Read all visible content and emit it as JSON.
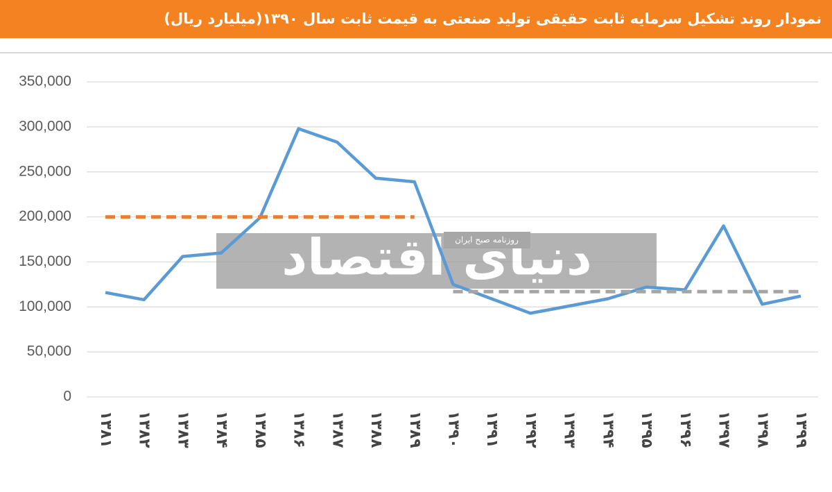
{
  "chart_data": {
    "type": "line",
    "title": "نمودار روند تشکیل سرمایه ثابت حقیقی تولید صنعتی به قیمت ثابت سال ۱۳۹۰(میلیارد ریال)",
    "categories": [
      "۱۳۸۱",
      "۱۳۸۲",
      "۱۳۸۳",
      "۱۳۸۴",
      "۱۳۸۵",
      "۱۳۸۶",
      "۱۳۸۷",
      "۱۳۸۸",
      "۱۳۸۹",
      "۱۳۹۰",
      "۱۳۹۱",
      "۱۳۹۲",
      "۱۳۹۳",
      "۱۳۹۴",
      "۱۳۹۵",
      "۱۳۹۶",
      "۱۳۹۷",
      "۱۳۹۸",
      "۱۳۹۹"
    ],
    "series": [
      {
        "color": "#5b9bd5",
        "values": [
          116000,
          108000,
          156000,
          160000,
          199000,
          298000,
          283000,
          243000,
          239000,
          125000,
          109000,
          93000,
          101000,
          109000,
          122000,
          119000,
          190000,
          103000,
          112000
        ]
      },
      {
        "color": "#ed7d31",
        "dashed": true,
        "values": [
          200000,
          200000,
          200000,
          200000,
          200000,
          200000,
          200000,
          200000,
          200000,
          null,
          null,
          null,
          null,
          null,
          null,
          null,
          null,
          null,
          null
        ]
      },
      {
        "color": "#a5a5a5",
        "dashed": true,
        "values": [
          null,
          null,
          null,
          null,
          null,
          null,
          null,
          null,
          null,
          117000,
          117000,
          117000,
          117000,
          117000,
          117000,
          117000,
          117000,
          117000,
          117000
        ]
      }
    ],
    "ylim": [
      0,
      350000
    ],
    "yticks": [
      0,
      {
        "value": 50000,
        "label": "50,000"
      },
      {
        "value": 100000,
        "label": "100,000"
      },
      {
        "value": 150000,
        "label": "150,000"
      },
      {
        "value": 200000,
        "label": "200,000"
      },
      {
        "value": 250000,
        "label": "250,000"
      },
      {
        "value": 300000,
        "label": "300,000"
      },
      {
        "value": 350000,
        "label": "350,000"
      }
    ],
    "grid": true,
    "watermark": {
      "text": "دنیای اقتصاد",
      "subtitle": "روزنامه صبح ایران"
    }
  }
}
